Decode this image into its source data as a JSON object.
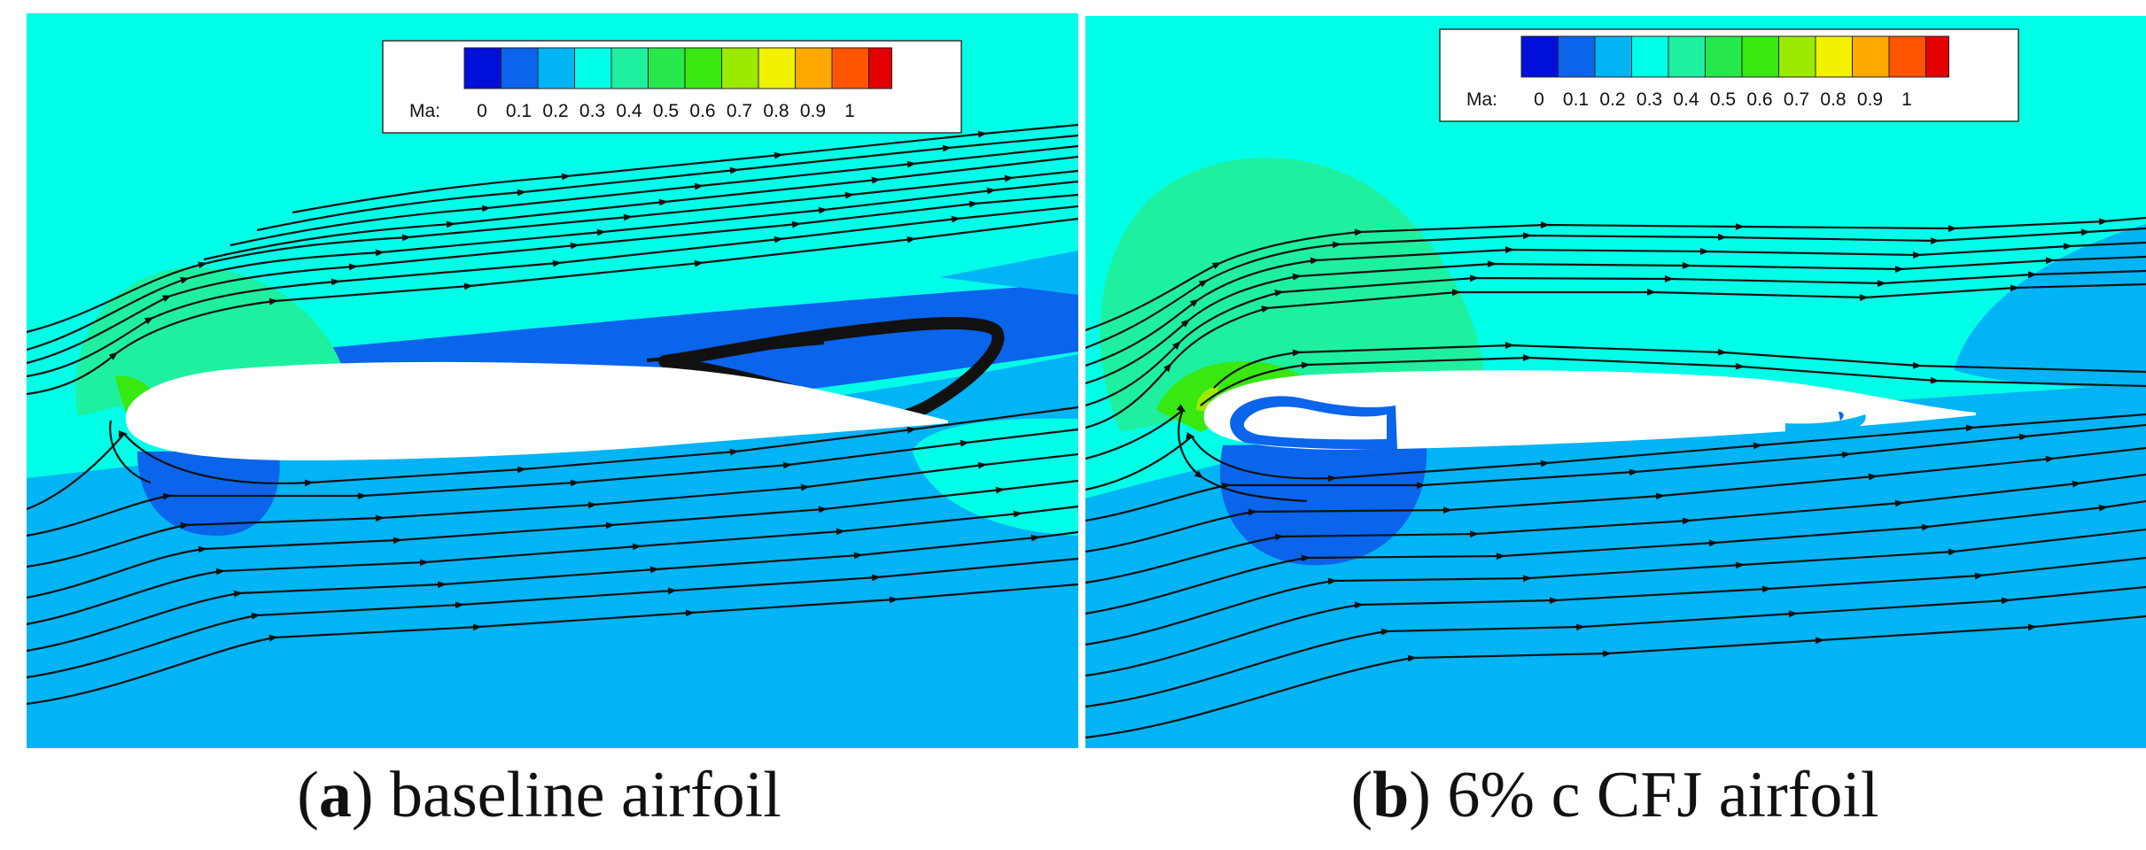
{
  "colorbar": {
    "variable": "Ma:",
    "ticks": [
      "0",
      "0.1",
      "0.2",
      "0.3",
      "0.4",
      "0.5",
      "0.6",
      "0.7",
      "0.8",
      "0.9",
      "1"
    ],
    "colors": [
      "#0010d8",
      "#0a64ec",
      "#00b4f5",
      "#00ffe6",
      "#1ef0a0",
      "#26e84a",
      "#38e810",
      "#9aeb00",
      "#f2f200",
      "#ffa800",
      "#ff5400",
      "#e40000"
    ]
  },
  "panels": [
    {
      "letter": "a",
      "caption": "baseline airfoil"
    },
    {
      "letter": "b",
      "caption": "6% c CFJ airfoil"
    }
  ],
  "field_colors": {
    "freestream": "#00ffe6",
    "lower": "#00b4f5",
    "upper_band": "#0a64ec",
    "accel": "#1ef0a0",
    "peak": "#38e810",
    "airfoil": "#ffffff",
    "streamline": "#111111"
  }
}
